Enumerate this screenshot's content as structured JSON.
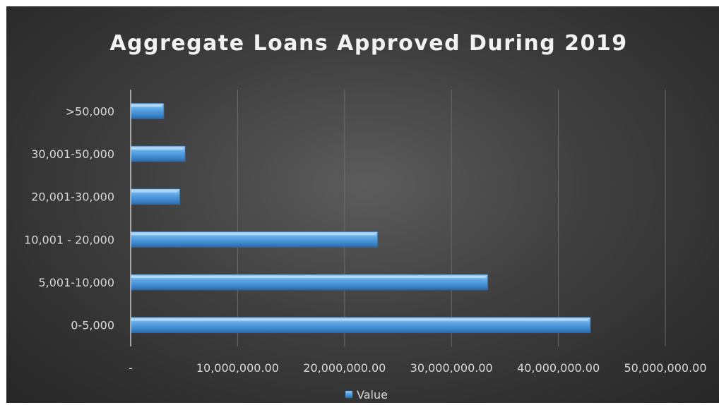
{
  "chart_data": {
    "type": "bar",
    "orientation": "horizontal",
    "title": "Aggregate Loans Approved During 2019",
    "xlabel": "",
    "ylabel": "",
    "categories": [
      "0-5,000",
      "5,001-10,000",
      "10,001 - 20,000",
      "20,001-30,000",
      "30,001-50,000",
      ">50,000"
    ],
    "series": [
      {
        "name": "Value",
        "values": [
          43000000,
          33400000,
          23100000,
          4600000,
          5100000,
          3100000
        ]
      }
    ],
    "xlim": [
      0,
      50000000
    ],
    "ticks": [
      0,
      10000000,
      20000000,
      30000000,
      40000000,
      50000000
    ],
    "tick_labels": [
      "-",
      "10,000,000.00",
      "20,000,000.00",
      "30,000,000.00",
      "40,000,000.00",
      "50,000,000.00"
    ],
    "grid": "vertical",
    "legend_position": "bottom",
    "colors": {
      "bar": "#4f9ee0",
      "bar_light": "#a9d2f5",
      "bar_dark": "#2a6aa8",
      "grid": "#6a6a6a",
      "axis": "#c8c8c8",
      "text": "#d9d9d9",
      "title": "#f2f2f2"
    }
  }
}
